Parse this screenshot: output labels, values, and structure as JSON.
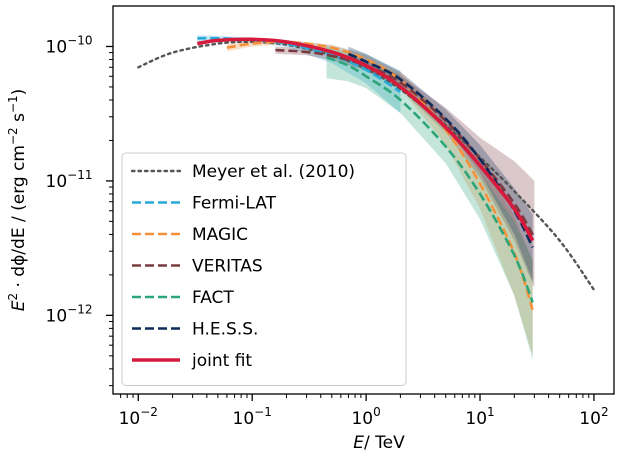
{
  "chart_data": {
    "type": "line",
    "xlabel_var": "E",
    "xlabel_unit": "/ TeV",
    "ylabel_left": "E",
    "ylabel_sup": "2",
    "ylabel_right": " · dϕ/dE / (erg cm",
    "ylabel_sup2": "−2",
    "ylabel_end": " s",
    "ylabel_sup3": "−1",
    "ylabel_close": ")",
    "x_scale": "log",
    "y_scale": "log",
    "xlim": [
      0.006,
      150
    ],
    "ylim": [
      2.6e-13,
      2e-10
    ],
    "x_ticks": [
      {
        "value": 0.01,
        "base": "10",
        "exp": "−2"
      },
      {
        "value": 0.1,
        "base": "10",
        "exp": "−1"
      },
      {
        "value": 1,
        "base": "10",
        "exp": "0"
      },
      {
        "value": 10,
        "base": "10",
        "exp": "1"
      },
      {
        "value": 100,
        "base": "10",
        "exp": "2"
      }
    ],
    "y_ticks": [
      {
        "value": 1e-12,
        "base": "10",
        "exp": "−12"
      },
      {
        "value": 1e-11,
        "base": "10",
        "exp": "−11"
      },
      {
        "value": 1e-10,
        "base": "10",
        "exp": "−10"
      }
    ],
    "grid": false,
    "legend_position": "lower-left",
    "series": [
      {
        "name": "Meyer et al. (2010)",
        "color": "#555555",
        "style": "dotted",
        "x": [
          0.01,
          0.02,
          0.05,
          0.1,
          0.2,
          0.5,
          1,
          2,
          5,
          10,
          20,
          50,
          100
        ],
        "y": [
          7e-11,
          9e-11,
          1.05e-10,
          1.08e-10,
          1.03e-10,
          8.6e-11,
          6.8e-11,
          4.8e-11,
          2.6e-11,
          1.5e-11,
          8.4e-12,
          3.6e-12,
          1.55e-12
        ]
      },
      {
        "name": "Fermi-LAT",
        "color": "#29a7d8",
        "style": "dashed",
        "x": [
          0.033,
          0.05,
          0.1,
          0.2,
          0.5,
          1,
          2
        ],
        "y": [
          1.15e-10,
          1.15e-10,
          1.12e-10,
          1.05e-10,
          8.6e-11,
          6.7e-11,
          4.6e-11
        ],
        "band_low": [
          1.04e-10,
          1.07e-10,
          1.07e-10,
          9.9e-11,
          7.5e-11,
          5.3e-11,
          3.2e-11
        ],
        "band_high": [
          1.21e-10,
          1.2e-10,
          1.16e-10,
          1.12e-10,
          1.02e-10,
          8.8e-11,
          6.6e-11
        ]
      },
      {
        "name": "MAGIC",
        "color": "#f5913a",
        "style": "dashed",
        "x": [
          0.06,
          0.1,
          0.2,
          0.5,
          1,
          2,
          5,
          10,
          20,
          29
        ],
        "y": [
          9.8e-11,
          1.05e-10,
          1.08e-10,
          9.8e-11,
          8e-11,
          5.6e-11,
          2.4e-11,
          9.5e-12,
          2.9e-12,
          1.1e-12
        ],
        "band_low": [
          9.2e-11,
          1e-10,
          1.04e-10,
          9.3e-11,
          7.4e-11,
          4.9e-11,
          1.85e-11,
          6.2e-12,
          1.4e-12,
          5e-13
        ],
        "band_high": [
          1.04e-10,
          1.1e-10,
          1.12e-10,
          1.03e-10,
          8.6e-11,
          6.4e-11,
          3e-11,
          1.4e-11,
          5.5e-12,
          2.5e-12
        ]
      },
      {
        "name": "VERITAS",
        "color": "#7a3b40",
        "style": "dashed",
        "x": [
          0.16,
          0.3,
          0.5,
          1,
          2,
          5,
          10,
          20,
          30
        ],
        "y": [
          9.4e-11,
          9.1e-11,
          8.5e-11,
          7.2e-11,
          5.4e-11,
          2.8e-11,
          1.45e-11,
          6.8e-12,
          3.8e-12
        ],
        "band_low": [
          8.8e-11,
          8.6e-11,
          7.9e-11,
          6.6e-11,
          4.8e-11,
          2.3e-11,
          1.05e-11,
          3.6e-12,
          1.6e-12
        ],
        "band_high": [
          1e-10,
          9.7e-11,
          9.2e-11,
          7.9e-11,
          6.1e-11,
          3.5e-11,
          2.1e-11,
          1.4e-11,
          1e-11
        ]
      },
      {
        "name": "FACT",
        "color": "#2ca579",
        "style": "dashed",
        "x": [
          0.45,
          0.7,
          1,
          2,
          5,
          10,
          20,
          29
        ],
        "y": [
          8.3e-11,
          7.2e-11,
          6e-11,
          4e-11,
          1.8e-11,
          8e-12,
          2.8e-12,
          1.25e-12
        ],
        "band_low": [
          5.8e-11,
          5.5e-11,
          4.9e-11,
          3.2e-11,
          1.35e-11,
          5.2e-12,
          1.4e-12,
          4.7e-13
        ],
        "band_high": [
          1e-10,
          9e-11,
          7.4e-11,
          5e-11,
          2.4e-11,
          1.15e-11,
          5e-12,
          2.6e-12
        ]
      },
      {
        "name": "H.E.S.S.",
        "color": "#0d2a5a",
        "style": "dashed",
        "x": [
          0.7,
          1,
          2,
          5,
          10,
          20,
          29
        ],
        "y": [
          8.8e-11,
          7.7e-11,
          5.7e-11,
          2.9e-11,
          1.45e-11,
          6e-12,
          3.2e-12
        ],
        "band_low": [
          7.6e-11,
          6.8e-11,
          5.1e-11,
          2.5e-11,
          1.15e-11,
          4e-12,
          1.8e-12
        ],
        "band_high": [
          1e-10,
          8.8e-11,
          6.5e-11,
          3.4e-11,
          1.85e-11,
          8.8e-12,
          5.6e-12
        ]
      },
      {
        "name": "joint fit",
        "color": "#d7193c",
        "style": "solid",
        "x": [
          0.033,
          0.05,
          0.1,
          0.2,
          0.5,
          1,
          2,
          5,
          10,
          20,
          29
        ],
        "y": [
          1.05e-10,
          1.11e-10,
          1.13e-10,
          1.08e-10,
          9.1e-11,
          7.2e-11,
          5e-11,
          2.5e-11,
          1.3e-11,
          6.2e-12,
          3.6e-12
        ]
      }
    ]
  }
}
